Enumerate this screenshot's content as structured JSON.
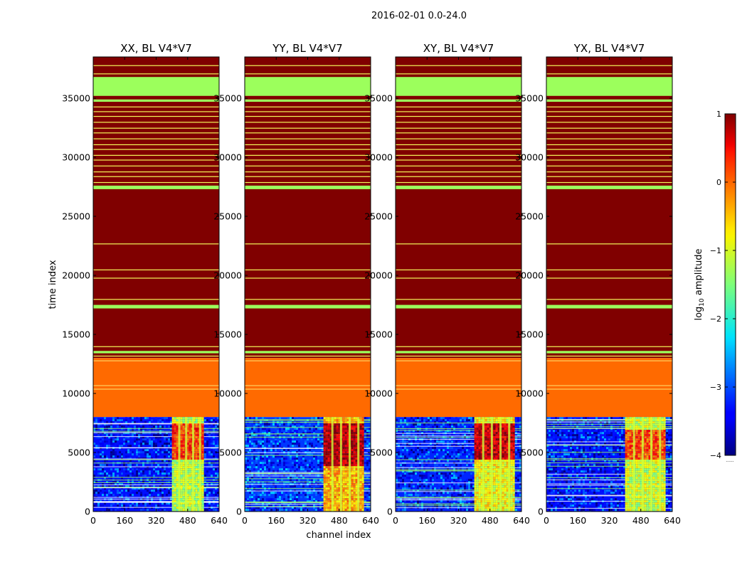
{
  "figure": {
    "suptitle": "2016-02-01 0.0-24.0",
    "xlabel": "channel index",
    "ylabel": "time index",
    "colorbar_label": "log10 amplitude",
    "colorbar_label_parts": {
      "base": "log",
      "sub": "10",
      "rest": " amplitude"
    },
    "colorbar_extra": "......"
  },
  "chart_data": [
    {
      "type": "heatmap",
      "title": "XX, BL V4*V7",
      "xlim": [
        0,
        640
      ],
      "ylim": [
        0,
        38500
      ],
      "xticks": [
        0,
        160,
        320,
        480,
        640
      ],
      "yticks": [
        0,
        5000,
        10000,
        15000,
        20000,
        25000,
        30000,
        35000
      ],
      "colorbar": {
        "min": -4,
        "max": 1,
        "ticks": [
          -4,
          -3,
          -2,
          -1,
          0,
          1
        ],
        "colormap": "jet"
      },
      "bands": [
        {
          "from": 8000,
          "to": 13000,
          "value": 0.05,
          "label": "constant orange block"
        },
        {
          "from": 13000,
          "to": 38500,
          "value": 1.0,
          "label": "saturated block with lines"
        },
        {
          "from": 36800,
          "to": 35200,
          "value": -0.9,
          "label": "green band"
        },
        {
          "from": 27300,
          "to": 27600,
          "value": -0.9
        },
        {
          "from": 17200,
          "to": 17500,
          "value": -0.9
        }
      ],
      "rfi_channels": [
        400,
        560
      ],
      "low_region": {
        "from": 0,
        "to": 8000,
        "noise_value": -3.3,
        "rfi_value": -1.2,
        "burst_time": [
          4500,
          7500
        ],
        "burst_value": 0.1
      }
    },
    {
      "type": "heatmap",
      "title": "YY, BL V4*V7",
      "xlim": [
        0,
        640
      ],
      "ylim": [
        0,
        38500
      ],
      "xticks": [
        0,
        160,
        320,
        480,
        640
      ],
      "yticks": [
        0,
        5000,
        10000,
        15000,
        20000,
        25000,
        30000,
        35000
      ],
      "colorbar": {
        "min": -4,
        "max": 1,
        "ticks": [
          -4,
          -3,
          -2,
          -1,
          0,
          1
        ],
        "colormap": "jet"
      },
      "rfi_channels": [
        400,
        600
      ],
      "low_region": {
        "from": 0,
        "to": 8000,
        "noise_value": -3.1,
        "rfi_value": -0.5,
        "burst_time": [
          4000,
          7500
        ],
        "burst_value": 0.7
      }
    },
    {
      "type": "heatmap",
      "title": "XY, BL V4*V7",
      "xlim": [
        0,
        640
      ],
      "ylim": [
        0,
        38500
      ],
      "xticks": [
        0,
        160,
        320,
        480,
        640
      ],
      "yticks": [
        0,
        5000,
        10000,
        15000,
        20000,
        25000,
        30000,
        35000
      ],
      "colorbar": {
        "min": -4,
        "max": 1,
        "ticks": [
          -4,
          -3,
          -2,
          -1,
          0,
          1
        ],
        "colormap": "jet"
      },
      "rfi_channels": [
        400,
        600
      ],
      "low_region": {
        "from": 0,
        "to": 8000,
        "noise_value": -3.2,
        "rfi_value": -0.9,
        "burst_time": [
          4500,
          7500
        ],
        "burst_value": 0.6
      }
    },
    {
      "type": "heatmap",
      "title": "YX, BL V4*V7",
      "xlim": [
        0,
        640
      ],
      "ylim": [
        0,
        38500
      ],
      "xticks": [
        0,
        160,
        320,
        480,
        640
      ],
      "yticks": [
        0,
        5000,
        10000,
        15000,
        20000,
        25000,
        30000,
        35000
      ],
      "colorbar": {
        "min": -4,
        "max": 1,
        "ticks": [
          -4,
          -3,
          -2,
          -1,
          0,
          1
        ],
        "colormap": "jet"
      },
      "rfi_channels": [
        400,
        600
      ],
      "low_region": {
        "from": 0,
        "to": 8000,
        "noise_value": -3.3,
        "rfi_value": -1.1,
        "burst_time": [
          4500,
          7000
        ],
        "burst_value": 0.0
      }
    }
  ]
}
